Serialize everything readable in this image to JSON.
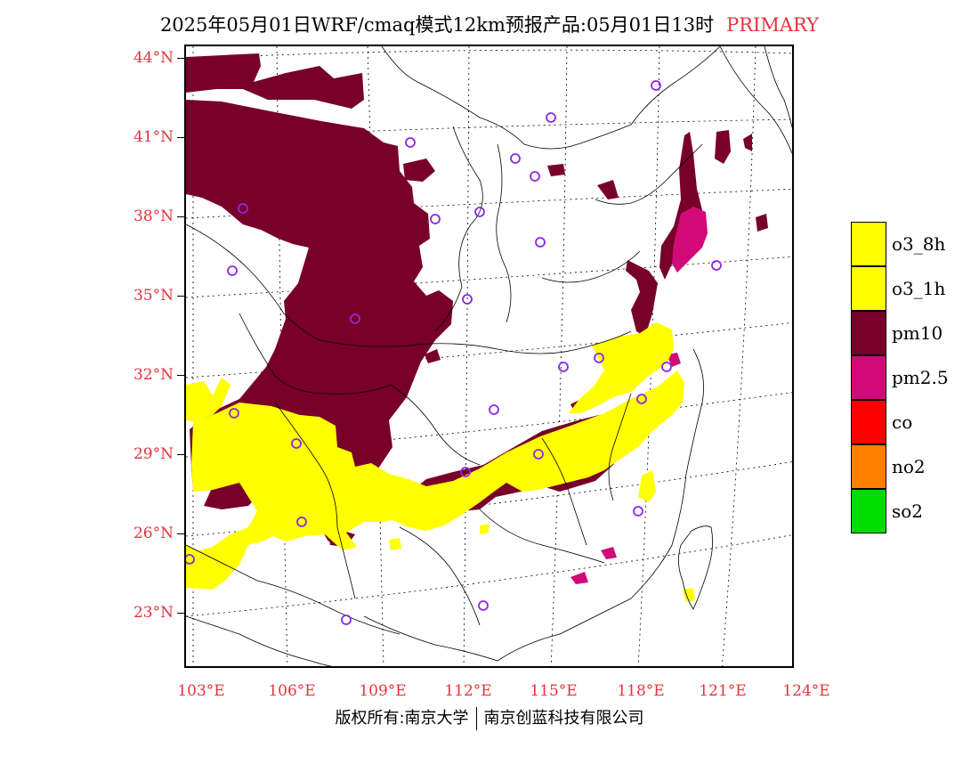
{
  "header": {
    "title": "2025年05月01日WRF/cmaq模式12km预报产品:05月01日13时",
    "tag": "PRIMARY"
  },
  "map": {
    "lat_labels": [
      "44°N",
      "41°N",
      "38°N",
      "35°N",
      "32°N",
      "29°N",
      "26°N",
      "23°N"
    ],
    "lon_labels": [
      "103°E",
      "106°E",
      "109°E",
      "112°E",
      "115°E",
      "118°E",
      "121°E",
      "124°E"
    ],
    "colors": {
      "pm10": "#780028",
      "pm2_5": "#d20a78",
      "o3": "#ffff00",
      "station": "#8c28e6"
    },
    "station_count": 27
  },
  "legend": {
    "items": [
      {
        "label": "o3_8h",
        "color": "#ffff00"
      },
      {
        "label": "o3_1h",
        "color": "#ffff00"
      },
      {
        "label": "pm10",
        "color": "#780028"
      },
      {
        "label": "pm2.5",
        "color": "#d20a78"
      },
      {
        "label": "co",
        "color": "#ff0000"
      },
      {
        "label": "no2",
        "color": "#ff7f00"
      },
      {
        "label": "so2",
        "color": "#00dc00"
      }
    ]
  },
  "footer": {
    "left": "版权所有:南京大学",
    "right": "南京创蓝科技有限公司"
  }
}
